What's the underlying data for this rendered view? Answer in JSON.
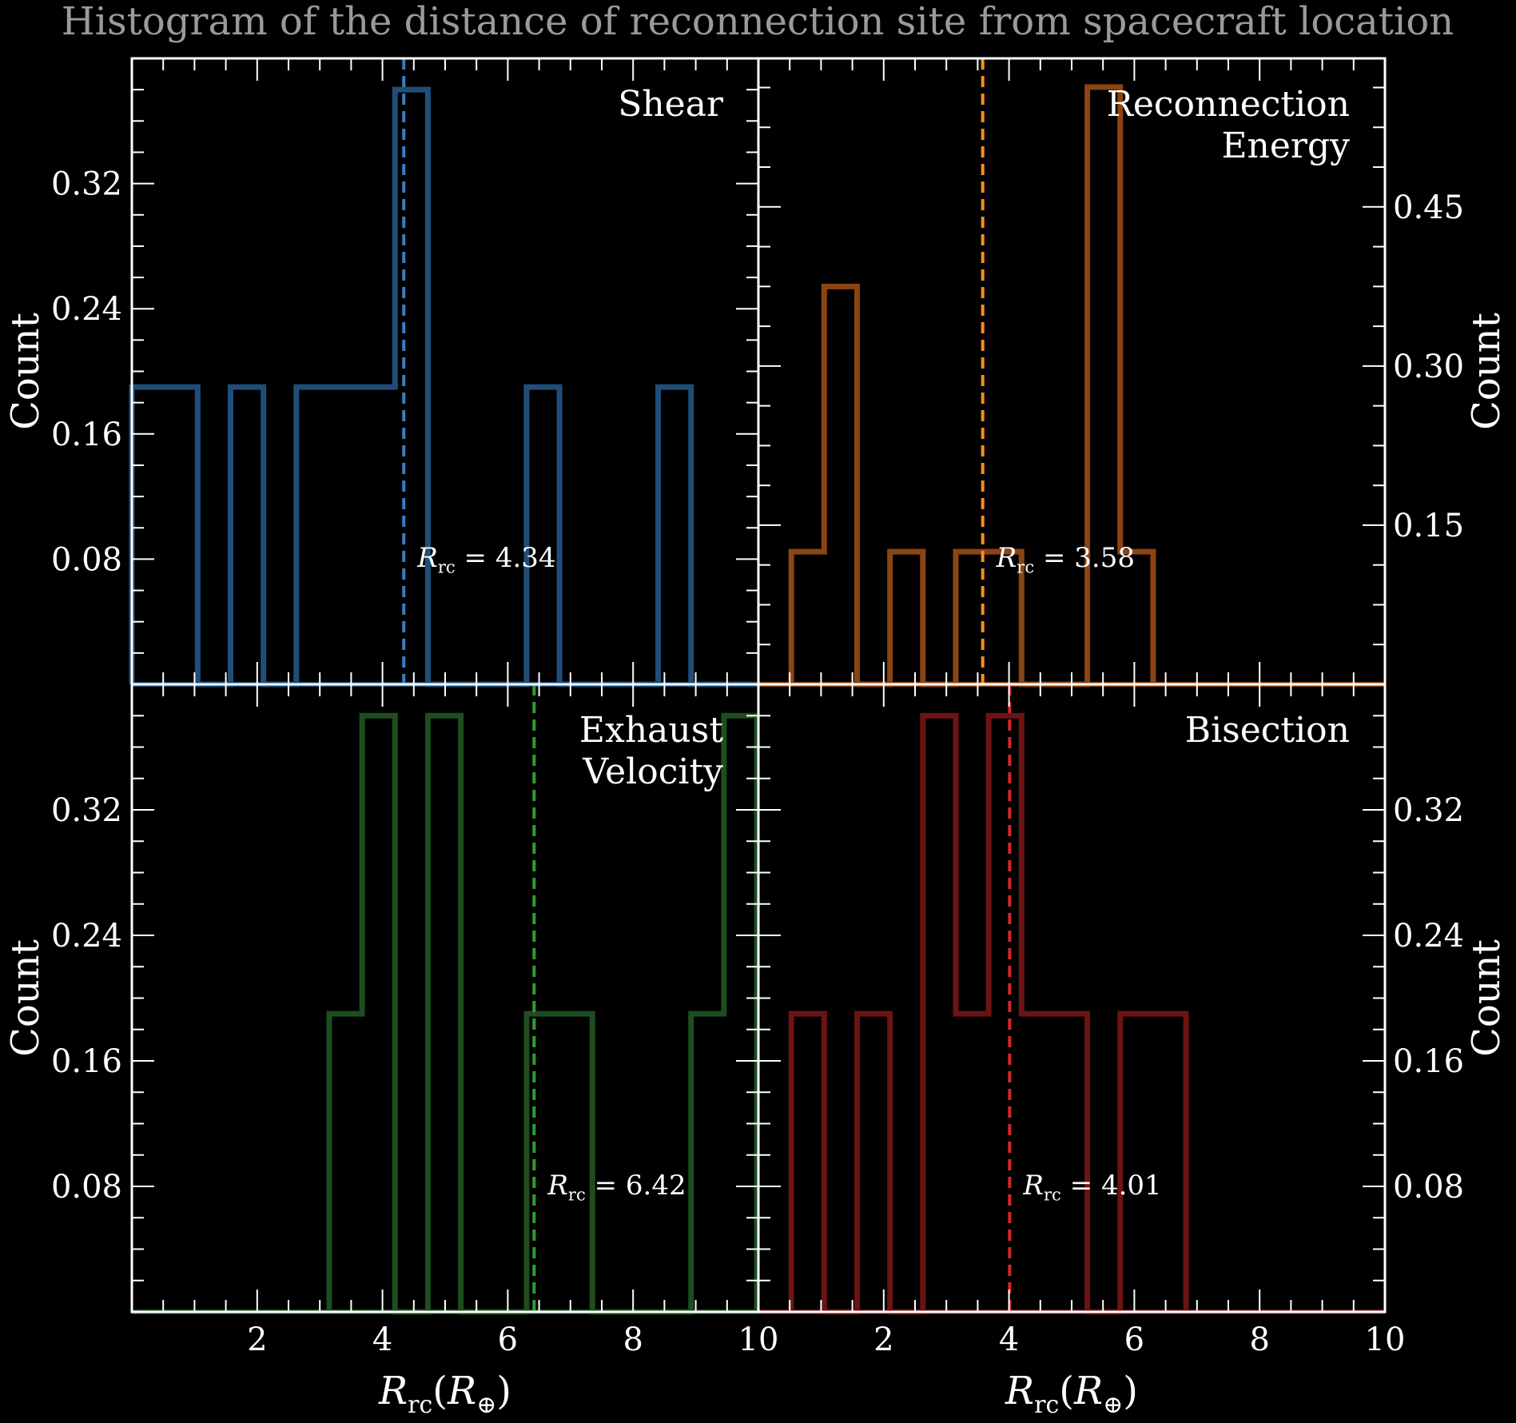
{
  "title": "Histogram of the distance of reconnection site from spacecraft location",
  "colors": {
    "background": "#000000",
    "axes": "#ffffff",
    "title": "#9a9a9a"
  },
  "shared_xlabel": "R_rc(R_⊕)",
  "chart_data": [
    {
      "type": "histogram",
      "label": "Shear",
      "color": "#1f4e79",
      "median_color": "#3a7fc0",
      "bins": [
        0,
        0.525,
        1.05,
        1.575,
        2.1,
        2.625,
        3.15,
        3.675,
        4.2,
        4.725,
        5.25,
        5.775,
        6.3,
        6.825,
        7.35,
        7.875,
        8.4,
        8.925,
        9.45,
        9.975
      ],
      "values": [
        0.19,
        0.19,
        0.0,
        0.19,
        0.0,
        0.19,
        0.19,
        0.19,
        0.38,
        0.0,
        0.0,
        0.0,
        0.19,
        0.0,
        0.0,
        0.0,
        0.19,
        0.0,
        0.0
      ],
      "median": 4.34,
      "median_label": "R_rc = 4.34",
      "xlim": [
        0,
        10
      ],
      "ylim": [
        0,
        0.4
      ],
      "yticks": [
        0.08,
        0.16,
        0.24,
        0.32
      ],
      "ytick_labels": [
        "0.08",
        "0.16",
        "0.24",
        "0.32"
      ],
      "ylabel": "Count",
      "ylabel_side": "left"
    },
    {
      "type": "histogram",
      "label": "Reconnection Energy",
      "label_lines": [
        "Reconnection",
        "Energy"
      ],
      "color": "#8b4513",
      "median_color": "#ff8c1a",
      "bins": [
        0.525,
        1.05,
        1.575,
        2.1,
        2.625,
        3.15,
        3.675,
        4.2,
        4.725,
        5.25,
        5.775,
        6.3
      ],
      "values": [
        0.125,
        0.375,
        0.0,
        0.125,
        0.0,
        0.125,
        0.125,
        0.0,
        0.0,
        0.563,
        0.125
      ],
      "median": 3.58,
      "median_label": "R_rc = 3.58",
      "xlim": [
        0,
        10
      ],
      "ylim": [
        0,
        0.59
      ],
      "yticks": [
        0.15,
        0.3,
        0.45
      ],
      "ytick_labels": [
        "0.15",
        "0.30",
        "0.45"
      ],
      "ylabel": "Count",
      "ylabel_side": "right"
    },
    {
      "type": "histogram",
      "label": "Exhaust Velocity",
      "label_lines": [
        "Exhaust",
        "Velocity"
      ],
      "color": "#1e4d1e",
      "median_color": "#2ca02c",
      "bins": [
        3.15,
        3.675,
        4.2,
        4.725,
        5.25,
        5.775,
        6.3,
        6.825,
        7.35,
        7.875,
        8.4,
        8.925,
        9.45,
        9.975
      ],
      "values": [
        0.19,
        0.38,
        0.0,
        0.38,
        0.0,
        0.0,
        0.19,
        0.19,
        0.0,
        0.0,
        0.0,
        0.19,
        0.38
      ],
      "median": 6.42,
      "median_label": "R_rc = 6.42",
      "xlim": [
        0,
        10
      ],
      "ylim": [
        0,
        0.4
      ],
      "xticks": [
        2,
        4,
        6,
        8,
        10
      ],
      "xtick_labels": [
        "2",
        "4",
        "6",
        "8",
        "10"
      ],
      "xlabel": "R_rc(R_⊕)",
      "yticks": [
        0.08,
        0.16,
        0.24,
        0.32
      ],
      "ytick_labels": [
        "0.08",
        "0.16",
        "0.24",
        "0.32"
      ],
      "ylabel": "Count",
      "ylabel_side": "left"
    },
    {
      "type": "histogram",
      "label": "Bisection",
      "color": "#6b1414",
      "median_color": "#d62728",
      "bins": [
        0.525,
        1.05,
        1.575,
        2.1,
        2.625,
        3.15,
        3.675,
        4.2,
        4.725,
        5.25,
        5.775,
        6.3,
        6.825
      ],
      "values": [
        0.19,
        0.0,
        0.19,
        0.0,
        0.38,
        0.19,
        0.38,
        0.19,
        0.19,
        0.0,
        0.19,
        0.19
      ],
      "median": 4.01,
      "median_label": "R_rc = 4.01",
      "xlim": [
        0,
        10
      ],
      "ylim": [
        0,
        0.4
      ],
      "xticks": [
        2,
        4,
        6,
        8,
        10
      ],
      "xtick_labels": [
        "2",
        "4",
        "6",
        "8",
        "10"
      ],
      "xlabel": "R_rc(R_⊕)",
      "yticks": [
        0.08,
        0.16,
        0.24,
        0.32
      ],
      "ytick_labels": [
        "0.08",
        "0.16",
        "0.24",
        "0.32"
      ],
      "ylabel": "Count",
      "ylabel_side": "right"
    }
  ]
}
